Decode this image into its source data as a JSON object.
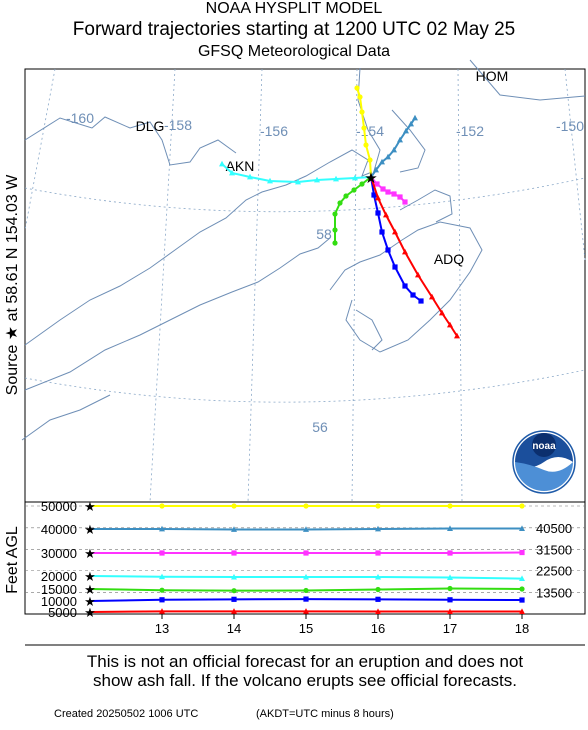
{
  "header": {
    "line1": "NOAA HYSPLIT MODEL",
    "line2": "Forward trajectories starting at 1200 UTC 02 May 25",
    "line3": "GFSQ Meteorological Data"
  },
  "source_label": "Source ★ at 58.61 N 154.03 W",
  "notice": {
    "line1": "This is not an official forecast for an eruption and does not",
    "line2": "show ash fall. If the volcano erupts see official forecasts."
  },
  "footer": {
    "created": "Created 20250502 1006 UTC",
    "akdt": "(AKDT=UTC minus 8 hours)"
  },
  "logo_text": "noaa",
  "chart_data": [
    {
      "type": "line",
      "name": "map",
      "lon_labels": [
        "-160",
        "-158",
        "-156",
        "-154",
        "-152",
        "-150"
      ],
      "lat_labels": [
        "58",
        "56"
      ],
      "places": [
        "DLG",
        "AKN",
        "HOM",
        "ADQ"
      ],
      "series": [
        {
          "color": "#ffff00",
          "marker": "circle"
        },
        {
          "color": "#3d8fc2",
          "marker": "triangle"
        },
        {
          "color": "#ff33ff",
          "marker": "square"
        },
        {
          "color": "#33ffff",
          "marker": "triangle"
        },
        {
          "color": "#33dd11",
          "marker": "circle"
        },
        {
          "color": "#0000ff",
          "marker": "square"
        },
        {
          "color": "#ff0000",
          "marker": "triangle"
        }
      ]
    },
    {
      "type": "line",
      "name": "height-time",
      "ylabel": "Feet AGL",
      "x": [
        12,
        13,
        14,
        15,
        16,
        17,
        18
      ],
      "x_ticks": [
        "13",
        "14",
        "15",
        "16",
        "17",
        "18"
      ],
      "xlim": [
        12,
        18
      ],
      "y_ticks_left": [
        "50000",
        "40000",
        "30000",
        "20000",
        "15000",
        "10000",
        "5000"
      ],
      "y_ticks_right": [
        "40500",
        "31500",
        "22500",
        "13500"
      ],
      "series": [
        {
          "color": "#ffff00",
          "marker": "circle",
          "values": [
            50000,
            50000,
            50000,
            50000,
            50000,
            50000,
            50000
          ]
        },
        {
          "color": "#3d8fc2",
          "marker": "triangle",
          "values": [
            40000,
            40000,
            39800,
            39800,
            40000,
            40200,
            40200
          ]
        },
        {
          "color": "#ff33ff",
          "marker": "square",
          "values": [
            30000,
            30000,
            30000,
            30000,
            30000,
            30000,
            30200
          ]
        },
        {
          "color": "#33ffff",
          "marker": "triangle",
          "values": [
            20000,
            19700,
            19600,
            19600,
            19600,
            19400,
            19000
          ]
        },
        {
          "color": "#33dd11",
          "marker": "circle",
          "values": [
            15000,
            14500,
            14300,
            14400,
            14800,
            15200,
            15000
          ]
        },
        {
          "color": "#0000ff",
          "marker": "square",
          "values": [
            10000,
            10500,
            10700,
            10800,
            10700,
            10500,
            10400
          ]
        },
        {
          "color": "#ff0000",
          "marker": "triangle",
          "values": [
            5000,
            5300,
            5300,
            5300,
            5200,
            5200,
            5200
          ]
        }
      ]
    }
  ]
}
